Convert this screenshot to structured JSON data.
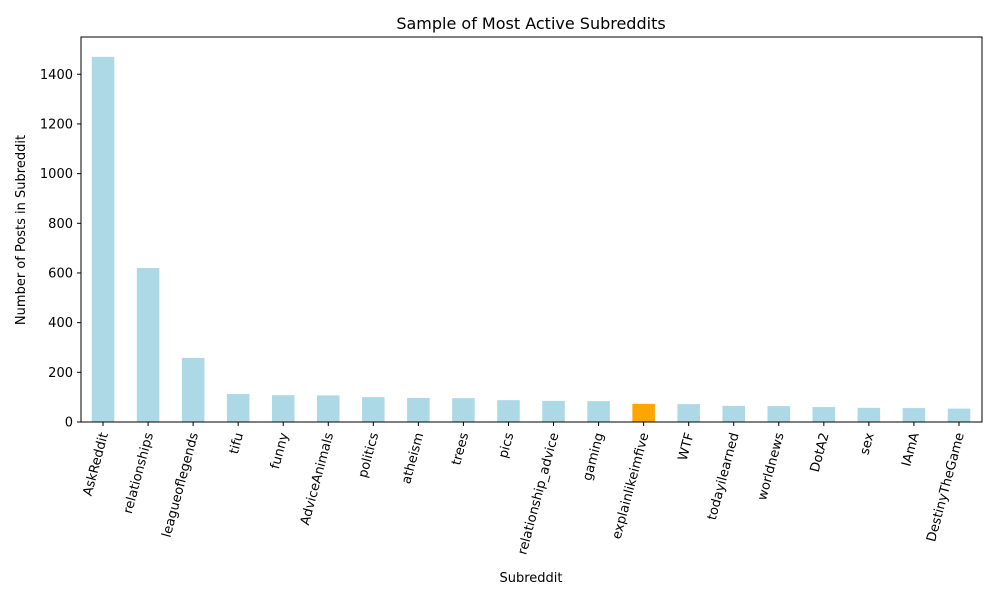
{
  "chart_data": {
    "type": "bar",
    "title": "Sample of Most Active Subreddits",
    "xlabel": "Subreddit",
    "ylabel": "Number of Posts in Subreddit",
    "ylim": [
      0,
      1550
    ],
    "yticks": [
      0,
      200,
      400,
      600,
      800,
      1000,
      1200,
      1400
    ],
    "grid": false,
    "categories": [
      "AskReddit",
      "relationships",
      "leagueoflegends",
      "tifu",
      "funny",
      "AdviceAnimals",
      "politics",
      "atheism",
      "trees",
      "pics",
      "relationship_advice",
      "gaming",
      "explainlikeimfive",
      "WTF",
      "todayilearned",
      "worldnews",
      "DotA2",
      "sex",
      "IAmA",
      "DestinyTheGame"
    ],
    "values": [
      1470,
      620,
      258,
      113,
      108,
      107,
      100,
      97,
      96,
      88,
      85,
      84,
      73,
      72,
      65,
      64,
      60,
      57,
      56,
      54
    ],
    "colors": {
      "default": "#add8e6",
      "highlight": "#ffa500"
    },
    "highlight_category": "explainlikeimfive"
  }
}
